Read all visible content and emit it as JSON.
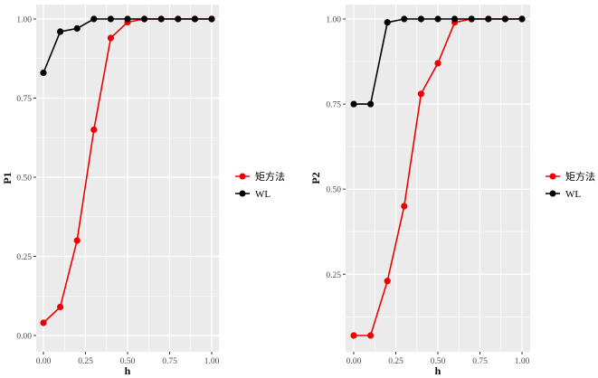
{
  "chart_data": [
    {
      "type": "line",
      "title": "",
      "xlabel": "h",
      "ylabel": "P1",
      "xlim": [
        0,
        1
      ],
      "ylim": [
        0,
        1
      ],
      "x": [
        0,
        0.1,
        0.2,
        0.3,
        0.4,
        0.5,
        0.6,
        0.7,
        0.8,
        0.9,
        1.0
      ],
      "xticks": [
        "0.00",
        "0.25",
        "0.50",
        "0.75",
        "1.00"
      ],
      "yticks": [
        "0.00",
        "0.25",
        "0.50",
        "0.75",
        "1.00"
      ],
      "grid": true,
      "legend_position": "right",
      "series": [
        {
          "name": "矩方法",
          "color": "#ee0000",
          "values": [
            0.04,
            0.09,
            0.3,
            0.65,
            0.94,
            0.99,
            1.0,
            1.0,
            1.0,
            1.0,
            1.0
          ]
        },
        {
          "name": "WL",
          "color": "#000000",
          "values": [
            0.83,
            0.96,
            0.97,
            1.0,
            1.0,
            1.0,
            1.0,
            1.0,
            1.0,
            1.0,
            1.0
          ]
        }
      ]
    },
    {
      "type": "line",
      "title": "",
      "xlabel": "h",
      "ylabel": "P2",
      "xlim": [
        0,
        1
      ],
      "ylim": [
        0.07,
        1
      ],
      "x": [
        0,
        0.1,
        0.2,
        0.3,
        0.4,
        0.5,
        0.6,
        0.7,
        0.8,
        0.9,
        1.0
      ],
      "xticks": [
        "0.00",
        "0.25",
        "0.50",
        "0.75",
        "1.00"
      ],
      "yticks": [
        "0.25",
        "0.50",
        "0.75",
        "1.00"
      ],
      "grid": true,
      "legend_position": "right",
      "series": [
        {
          "name": "矩方法",
          "color": "#ee0000",
          "values": [
            0.07,
            0.07,
            0.23,
            0.45,
            0.78,
            0.87,
            0.99,
            1.0,
            1.0,
            1.0,
            1.0
          ]
        },
        {
          "name": "WL",
          "color": "#000000",
          "values": [
            0.75,
            0.75,
            0.99,
            1.0,
            1.0,
            1.0,
            1.0,
            1.0,
            1.0,
            1.0,
            1.0
          ]
        }
      ]
    }
  ]
}
